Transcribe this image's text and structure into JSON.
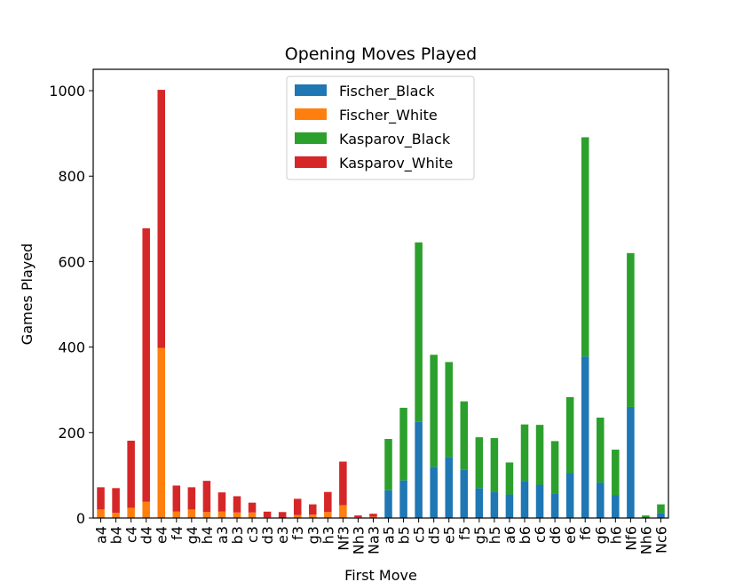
{
  "chart_data": {
    "type": "bar",
    "stacked": true,
    "title": "Opening Moves Played",
    "xlabel": "First Move",
    "ylabel": "Games Played",
    "ylim": [
      0,
      1050
    ],
    "yticks": [
      0,
      200,
      400,
      600,
      800,
      1000
    ],
    "grid": false,
    "legend_position": "top-center",
    "categories": [
      "a4",
      "b4",
      "c4",
      "d4",
      "e4",
      "f4",
      "g4",
      "h4",
      "a3",
      "b3",
      "c3",
      "d3",
      "e3",
      "f3",
      "g3",
      "h3",
      "Nf3",
      "Nh3",
      "Na3",
      "a5",
      "b5",
      "c5",
      "d5",
      "e5",
      "f5",
      "g5",
      "h5",
      "a6",
      "b6",
      "c6",
      "d6",
      "e6",
      "f6",
      "g6",
      "h6",
      "Nf6",
      "Nh6",
      "Nc6"
    ],
    "series": [
      {
        "name": "Fischer_Black",
        "color": "#1f77b4",
        "values": [
          0,
          0,
          0,
          0,
          0,
          0,
          0,
          0,
          0,
          0,
          0,
          0,
          0,
          0,
          0,
          0,
          0,
          0,
          0,
          65,
          88,
          225,
          120,
          143,
          113,
          70,
          62,
          55,
          87,
          78,
          57,
          105,
          378,
          83,
          53,
          260,
          0,
          12
        ]
      },
      {
        "name": "Fischer_White",
        "color": "#ff7f0e",
        "values": [
          20,
          12,
          24,
          38,
          398,
          15,
          20,
          14,
          15,
          13,
          13,
          2,
          0,
          7,
          8,
          14,
          30,
          2,
          3,
          0,
          0,
          0,
          0,
          0,
          0,
          0,
          0,
          0,
          0,
          0,
          0,
          0,
          0,
          0,
          0,
          0,
          0,
          0
        ]
      },
      {
        "name": "Kasparov_Black",
        "color": "#2ca02c",
        "values": [
          0,
          0,
          0,
          0,
          0,
          0,
          0,
          0,
          0,
          0,
          0,
          0,
          0,
          0,
          0,
          0,
          0,
          0,
          0,
          120,
          170,
          420,
          262,
          222,
          160,
          119,
          125,
          75,
          132,
          140,
          123,
          178,
          513,
          152,
          107,
          360,
          6,
          20
        ]
      },
      {
        "name": "Kasparov_White",
        "color": "#d62728",
        "values": [
          52,
          58,
          157,
          640,
          604,
          61,
          52,
          73,
          45,
          38,
          23,
          13,
          14,
          38,
          24,
          47,
          102,
          4,
          7,
          0,
          0,
          0,
          0,
          0,
          0,
          0,
          0,
          0,
          0,
          0,
          0,
          0,
          0,
          0,
          0,
          0,
          0,
          0
        ]
      }
    ]
  }
}
